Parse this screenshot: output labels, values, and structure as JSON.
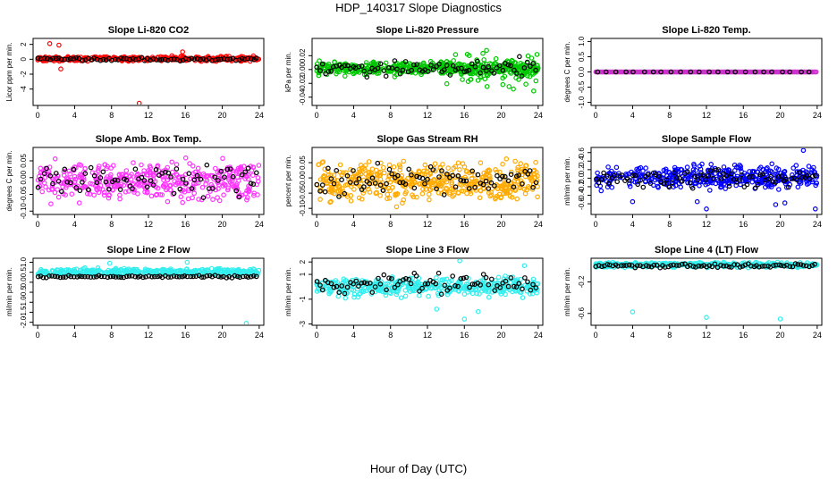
{
  "page": {
    "title": "HDP_140317  Slope Diagnostics",
    "x_label": "Hour of Day (UTC)"
  },
  "colors": {
    "black_points": "#000000",
    "co2": "#ff0000",
    "pressure": "#00c800",
    "temp": "#cc33cc",
    "box_temp": "#ff33ff",
    "rh": "#ffaa00",
    "sample_flow": "#0000ff",
    "line_flow": "#33eeee"
  },
  "chart_data": [
    {
      "type": "scatter",
      "title": "Slope Li-820 CO2",
      "ylabel": "Licor ppm per min.",
      "xlim": [
        -0.5,
        24.5
      ],
      "ylim": [
        -6.2,
        2.8
      ],
      "xticks": [
        0,
        4,
        8,
        12,
        16,
        20,
        24
      ],
      "yticks": [
        -4,
        -2,
        0,
        2
      ],
      "color": "#ff0000",
      "series": [
        {
          "name": "all",
          "color": "#ff0000",
          "band": [
            -0.4,
            0.5
          ],
          "count": 380,
          "seed": 11
        },
        {
          "name": "hourly",
          "color": "#000000",
          "band": [
            -0.3,
            0.3
          ],
          "count": 75,
          "seed": 12
        }
      ],
      "outliers": [
        {
          "x": 1.3,
          "y": 2.1
        },
        {
          "x": 2.3,
          "y": 1.9
        },
        {
          "x": 2.5,
          "y": -1.3
        },
        {
          "x": 11.0,
          "y": -5.9
        },
        {
          "x": 15.7,
          "y": 1.0
        }
      ]
    },
    {
      "type": "scatter",
      "title": "Slope Li-820 Pressure",
      "ylabel": "kPa per min.",
      "xlim": [
        -0.5,
        24.5
      ],
      "ylim": [
        -0.052,
        0.045
      ],
      "xticks": [
        0,
        4,
        8,
        12,
        16,
        20,
        24
      ],
      "yticks": [
        -0.04,
        -0.02,
        0.0,
        0.02
      ],
      "color": "#00c800",
      "series": [
        {
          "name": "all",
          "color": "#00c800",
          "band": [
            -0.012,
            0.016
          ],
          "count": 460,
          "seed": 21
        },
        {
          "name": "all-wide",
          "color": "#00c800",
          "band": [
            -0.04,
            0.035
          ],
          "count": 90,
          "seed": 22,
          "xrange": [
            14,
            24
          ]
        },
        {
          "name": "hourly",
          "color": "#000000",
          "band": [
            -0.018,
            0.02
          ],
          "count": 80,
          "seed": 23
        }
      ],
      "outliers": []
    },
    {
      "type": "scatter",
      "title": "Slope Li-820 Temp.",
      "ylabel": "degrees C per min.",
      "xlim": [
        -0.5,
        24.5
      ],
      "ylim": [
        -1.1,
        1.1
      ],
      "xticks": [
        0,
        4,
        8,
        12,
        16,
        20,
        24
      ],
      "yticks": [
        -1.0,
        -0.5,
        0.0,
        0.5,
        1.0
      ],
      "color": "#cc33cc",
      "series": [
        {
          "name": "all",
          "color": "#cc33cc",
          "band": [
            0.0,
            0.0
          ],
          "count": 200,
          "seed": 31
        },
        {
          "name": "hourly",
          "color": "#000000",
          "band": [
            0.0,
            0.0
          ],
          "count": 24,
          "seed": 32
        }
      ],
      "outliers": []
    },
    {
      "type": "scatter",
      "title": "Slope Amb. Box Temp.",
      "ylabel": "degrees C per min.",
      "xlim": [
        -0.5,
        24.5
      ],
      "ylim": [
        -0.11,
        0.09
      ],
      "xticks": [
        0,
        4,
        8,
        12,
        16,
        20,
        24
      ],
      "yticks": [
        -0.1,
        -0.05,
        0.0,
        0.05
      ],
      "color": "#ff33ff",
      "series": [
        {
          "name": "all",
          "color": "#ff33ff",
          "band": [
            -0.09,
            0.07
          ],
          "count": 420,
          "seed": 41
        },
        {
          "name": "hourly",
          "color": "#000000",
          "band": [
            -0.07,
            0.06
          ],
          "count": 75,
          "seed": 42
        }
      ],
      "outliers": []
    },
    {
      "type": "scatter",
      "title": "Slope Gas Stream RH",
      "ylabel": "percent per min.",
      "xlim": [
        -0.5,
        24.5
      ],
      "ylim": [
        -0.12,
        0.1
      ],
      "xticks": [
        0,
        4,
        8,
        12,
        16,
        20,
        24
      ],
      "yticks": [
        -0.1,
        -0.05,
        0.0,
        0.05
      ],
      "color": "#ffaa00",
      "series": [
        {
          "name": "all",
          "color": "#ffaa00",
          "band": [
            -0.1,
            0.08
          ],
          "count": 480,
          "seed": 51
        },
        {
          "name": "hourly",
          "color": "#000000",
          "band": [
            -0.08,
            0.07
          ],
          "count": 80,
          "seed": 52
        }
      ],
      "outliers": []
    },
    {
      "type": "scatter",
      "title": "Slope Sample Flow",
      "ylabel": "ml/min per min.",
      "xlim": [
        -0.5,
        24.5
      ],
      "ylim": [
        -0.85,
        0.72
      ],
      "xticks": [
        0,
        4,
        8,
        12,
        16,
        20,
        24
      ],
      "yticks": [
        -0.6,
        -0.4,
        -0.2,
        0.0,
        0.2,
        0.4,
        0.6
      ],
      "color": "#0000ff",
      "series": [
        {
          "name": "all",
          "color": "#0000ff",
          "band": [
            -0.35,
            0.4
          ],
          "count": 420,
          "seed": 61
        },
        {
          "name": "hourly",
          "color": "#000000",
          "band": [
            -0.3,
            0.3
          ],
          "count": 85,
          "seed": 62
        }
      ],
      "outliers": [
        {
          "x": 4.0,
          "y": -0.55
        },
        {
          "x": 11.0,
          "y": -0.55
        },
        {
          "x": 12.0,
          "y": -0.72
        },
        {
          "x": 19.5,
          "y": -0.62
        },
        {
          "x": 20.5,
          "y": -0.58
        },
        {
          "x": 22.5,
          "y": 0.65
        },
        {
          "x": 23.8,
          "y": -0.72
        }
      ]
    },
    {
      "type": "scatter",
      "title": "Slope Line 2 Flow",
      "ylabel": "ml/min per min.",
      "xlim": [
        -0.5,
        24.5
      ],
      "ylim": [
        -2.15,
        1.2
      ],
      "xticks": [
        0,
        4,
        8,
        12,
        16,
        20,
        24
      ],
      "yticks": [
        -2.0,
        -1.5,
        -1.0,
        -0.5,
        0.0,
        0.5,
        1.0
      ],
      "color": "#33eeee",
      "series": [
        {
          "name": "all",
          "color": "#33eeee",
          "band": [
            0.3,
            0.75
          ],
          "count": 420,
          "seed": 71
        },
        {
          "name": "hourly",
          "color": "#000000",
          "band": [
            0.2,
            0.35
          ],
          "count": 80,
          "seed": 72
        }
      ],
      "outliers": [
        {
          "x": 22.6,
          "y": -2.05
        },
        {
          "x": 16.2,
          "y": 1.0
        },
        {
          "x": 7.8,
          "y": 0.95
        }
      ]
    },
    {
      "type": "scatter",
      "title": "Slope Line 3 Flow",
      "ylabel": "ml/min per min.",
      "xlim": [
        -0.5,
        24.5
      ],
      "ylim": [
        -3.1,
        2.3
      ],
      "xticks": [
        0,
        4,
        8,
        12,
        16,
        20,
        24
      ],
      "yticks": [
        -3,
        -1,
        1,
        2
      ],
      "color": "#33eeee",
      "series": [
        {
          "name": "all",
          "color": "#33eeee",
          "band": [
            -1.0,
            1.0
          ],
          "count": 430,
          "seed": 81
        },
        {
          "name": "hourly",
          "color": "#000000",
          "band": [
            -0.8,
            1.2
          ],
          "count": 80,
          "seed": 82
        }
      ],
      "outliers": [
        {
          "x": 15.5,
          "y": 2.1
        },
        {
          "x": 16.0,
          "y": -2.6
        },
        {
          "x": 17.5,
          "y": -2.0
        },
        {
          "x": 13.0,
          "y": -1.8
        },
        {
          "x": 22.5,
          "y": 1.7
        }
      ]
    },
    {
      "type": "scatter",
      "title": "Slope Line 4 (LT) Flow",
      "ylabel": "ml/min per min.",
      "xlim": [
        -0.5,
        24.5
      ],
      "ylim": [
        -0.75,
        0.1
      ],
      "xticks": [
        0,
        4,
        8,
        12,
        16,
        20,
        24
      ],
      "yticks": [
        -0.6,
        -0.2
      ],
      "color": "#33eeee",
      "series": [
        {
          "name": "all",
          "color": "#33eeee",
          "band": [
            -0.03,
            0.06
          ],
          "count": 360,
          "seed": 91
        },
        {
          "name": "hourly",
          "color": "#000000",
          "band": [
            -0.03,
            0.04
          ],
          "count": 80,
          "seed": 92
        }
      ],
      "outliers": [
        {
          "x": 4.0,
          "y": -0.58
        },
        {
          "x": 12.0,
          "y": -0.65
        },
        {
          "x": 20.0,
          "y": -0.67
        }
      ]
    }
  ]
}
